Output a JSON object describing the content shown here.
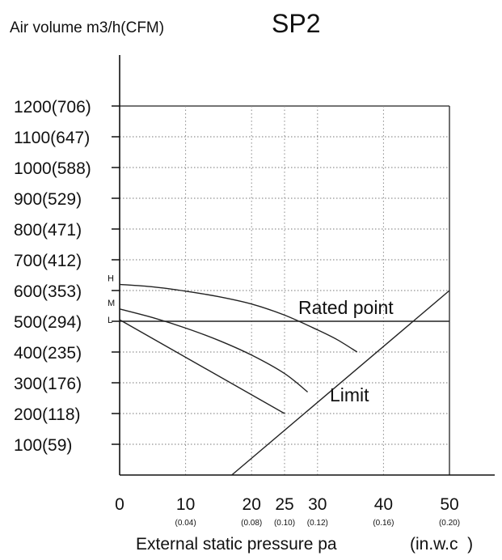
{
  "chart_data": {
    "type": "line",
    "title": "SP2",
    "ylabel": "Air volume m3/h(CFM)",
    "xlabel": "External static pressure pa",
    "xlabel_unit": "(in.w.c  )",
    "x_ticks": [
      {
        "value": 0,
        "label": "0",
        "sub": ""
      },
      {
        "value": 10,
        "label": "10",
        "sub": "(0.04)"
      },
      {
        "value": 20,
        "label": "20",
        "sub": "(0.08)"
      },
      {
        "value": 25,
        "label": "25",
        "sub": "(0.10)"
      },
      {
        "value": 30,
        "label": "30",
        "sub": "(0.12)"
      },
      {
        "value": 40,
        "label": "40",
        "sub": "(0.16)"
      },
      {
        "value": 50,
        "label": "50",
        "sub": "(0.20)"
      }
    ],
    "y_ticks": [
      {
        "value": 100,
        "label": "100(59)"
      },
      {
        "value": 200,
        "label": "200(118)"
      },
      {
        "value": 300,
        "label": "300(176)"
      },
      {
        "value": 400,
        "label": "400(235)"
      },
      {
        "value": 500,
        "label": "500(294)"
      },
      {
        "value": 600,
        "label": "600(353)"
      },
      {
        "value": 700,
        "label": "700(412)"
      },
      {
        "value": 800,
        "label": "800(471)"
      },
      {
        "value": 900,
        "label": "900(529)"
      },
      {
        "value": 1000,
        "label": "1000(588)"
      },
      {
        "value": 1100,
        "label": "1100(647)"
      },
      {
        "value": 1200,
        "label": "1200(706)"
      }
    ],
    "xlim": [
      0,
      50
    ],
    "ylim": [
      0,
      1200
    ],
    "grid": true,
    "series": [
      {
        "name": "H",
        "x": [
          0,
          5,
          10,
          15,
          20,
          25,
          30,
          33,
          36
        ],
        "y": [
          620,
          612,
          598,
          580,
          556,
          520,
          472,
          440,
          400
        ]
      },
      {
        "name": "M",
        "x": [
          0,
          5,
          10,
          15,
          20,
          25,
          28.5
        ],
        "y": [
          540,
          512,
          478,
          438,
          390,
          330,
          270
        ]
      },
      {
        "name": "L",
        "x": [
          0,
          25
        ],
        "y": [
          505,
          200
        ]
      }
    ],
    "reference_lines": [
      {
        "name": "Rated point",
        "kind": "horizontal",
        "y": 500
      },
      {
        "name": "Limit",
        "kind": "line",
        "x": [
          17,
          50
        ],
        "y": [
          0,
          600
        ]
      }
    ]
  }
}
